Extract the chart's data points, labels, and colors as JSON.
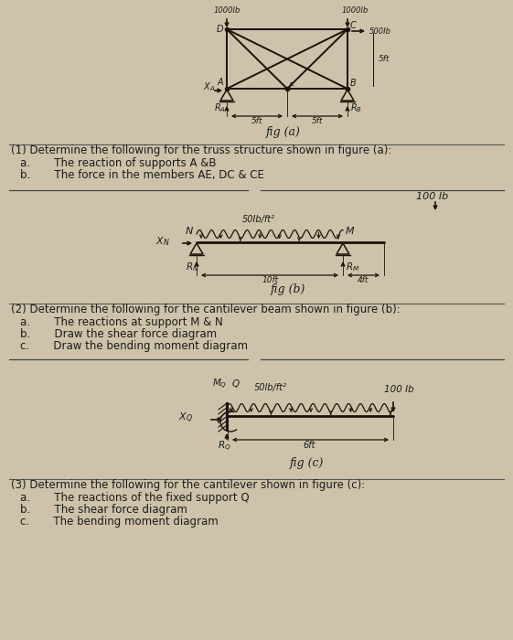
{
  "bg_color": "#cec3aa",
  "text_color": "#1a1a1a",
  "fig_width": 5.61,
  "fig_height": 7.0,
  "dpi": 100,
  "section1_text": [
    "(1) Determine the following for the truss structure shown in figure (a):",
    "a.       The reaction of supports A &B",
    "b.       The force in the members AE, DC & CE"
  ],
  "section2_text": [
    "(2) Determine the following for the cantilever beam shown in figure (b):",
    "a.       The reactions at support M & N",
    "b.       Draw the shear force diagram",
    "c.       Draw the bending moment diagram"
  ],
  "section3_text": [
    "(3) Determine the following for the cantilever shown in figure (c):",
    "a.       The reactions of the fixed support Q",
    "b.       The shear force diagram",
    "c.       The bending moment diagram"
  ]
}
